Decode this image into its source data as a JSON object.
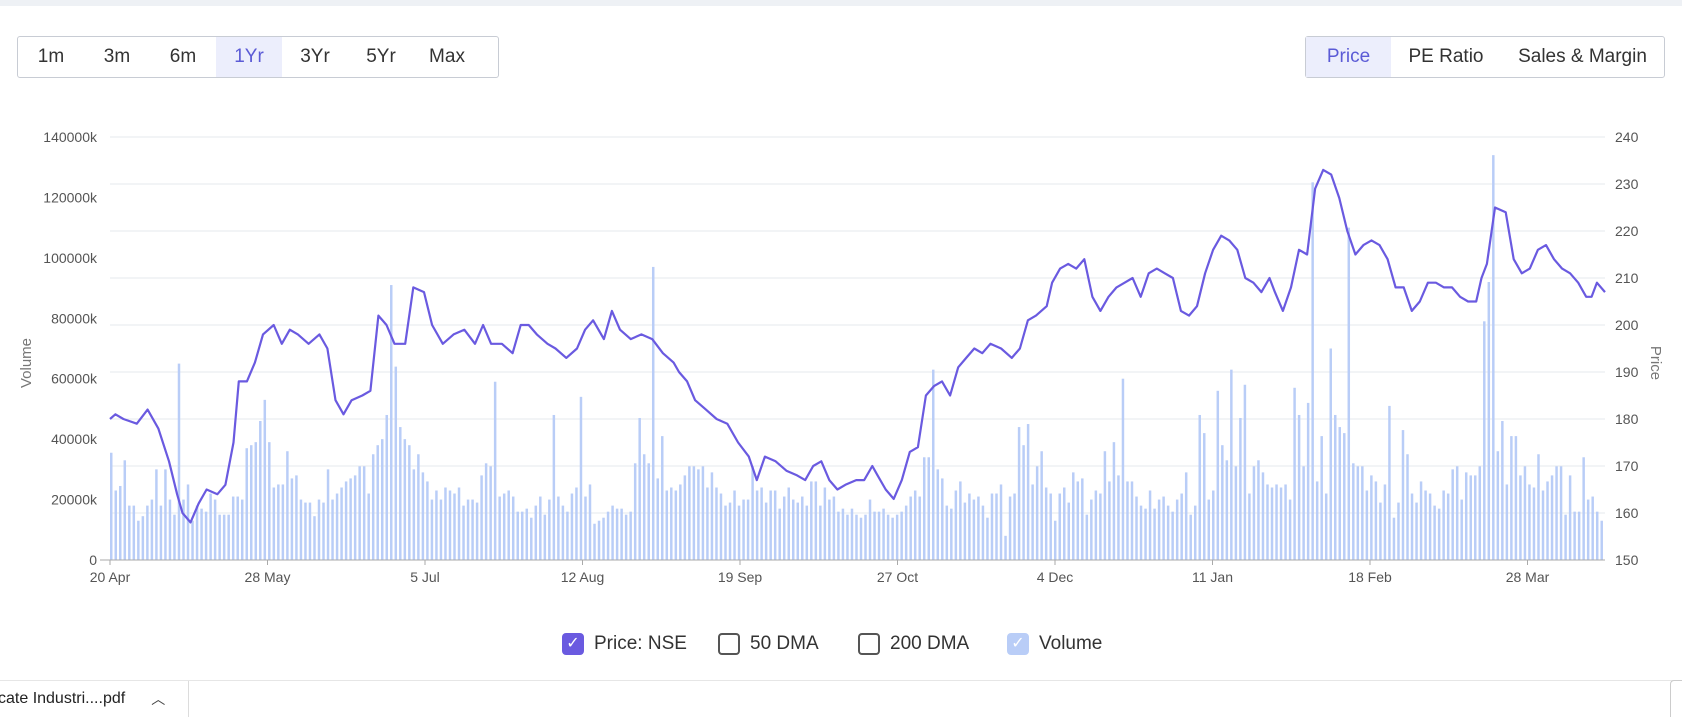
{
  "range_buttons": [
    "1m",
    "3m",
    "6m",
    "1Yr",
    "3Yr",
    "5Yr",
    "Max"
  ],
  "active_range": "1Yr",
  "view_buttons": [
    "Price",
    "PE Ratio",
    "Sales & Margin"
  ],
  "active_view": "Price",
  "legend": {
    "price_label": "Price: NSE",
    "dma50_label": "50 DMA",
    "dma200_label": "200 DMA",
    "volume_label": "Volume"
  },
  "download": {
    "file_label": "cate Industri....pdf"
  },
  "chart_data": {
    "type": "line",
    "colors": {
      "price": "#6a5ae0",
      "volume": "#b9cdf7",
      "grid": "#e6e8ec"
    },
    "x_ticks": [
      "20 Apr",
      "28 May",
      "5 Jul",
      "12 Aug",
      "19 Sep",
      "27 Oct",
      "4 Dec",
      "11 Jan",
      "18 Feb",
      "28 Mar"
    ],
    "y_left": {
      "label": "Volume",
      "range": [
        0,
        140000
      ],
      "ticks": [
        "0",
        "20000k",
        "40000k",
        "60000k",
        "80000k",
        "100000k",
        "120000k",
        "140000k"
      ]
    },
    "y_right": {
      "label": "Price",
      "range": [
        150,
        240
      ],
      "ticks": [
        "150",
        "160",
        "170",
        "180",
        "190",
        "200",
        "210",
        "220",
        "230",
        "240"
      ]
    },
    "price_series": {
      "name": "Price: NSE",
      "points": [
        [
          0,
          180
        ],
        [
          2,
          181
        ],
        [
          5,
          180
        ],
        [
          10,
          179
        ],
        [
          14,
          182
        ],
        [
          18,
          178
        ],
        [
          22,
          171
        ],
        [
          25,
          164
        ],
        [
          27,
          160
        ],
        [
          30,
          158
        ],
        [
          33,
          162
        ],
        [
          36,
          165
        ],
        [
          40,
          164
        ],
        [
          43,
          166
        ],
        [
          46,
          175
        ],
        [
          48,
          188
        ],
        [
          51,
          188
        ],
        [
          54,
          192
        ],
        [
          57,
          198
        ],
        [
          61,
          200
        ],
        [
          64,
          196
        ],
        [
          67,
          199
        ],
        [
          70,
          198
        ],
        [
          74,
          196
        ],
        [
          78,
          198
        ],
        [
          81,
          195
        ],
        [
          84,
          184
        ],
        [
          87,
          181
        ],
        [
          90,
          184
        ],
        [
          94,
          185
        ],
        [
          97,
          186
        ],
        [
          100,
          202
        ],
        [
          103,
          200
        ],
        [
          106,
          196
        ],
        [
          110,
          196
        ],
        [
          113,
          208
        ],
        [
          117,
          207
        ],
        [
          120,
          200
        ],
        [
          124,
          196
        ],
        [
          128,
          198
        ],
        [
          132,
          199
        ],
        [
          136,
          196
        ],
        [
          139,
          200
        ],
        [
          142,
          196
        ],
        [
          146,
          196
        ],
        [
          150,
          194
        ],
        [
          153,
          200
        ],
        [
          156,
          200
        ],
        [
          159,
          198
        ],
        [
          163,
          196
        ],
        [
          166,
          195
        ],
        [
          170,
          193
        ],
        [
          174,
          195
        ],
        [
          177,
          199
        ],
        [
          180,
          201
        ],
        [
          184,
          197
        ],
        [
          187,
          203
        ],
        [
          190,
          199
        ],
        [
          194,
          197
        ],
        [
          198,
          198
        ],
        [
          202,
          197
        ],
        [
          206,
          194
        ],
        [
          210,
          192
        ],
        [
          212,
          190
        ],
        [
          215,
          188
        ],
        [
          218,
          184
        ],
        [
          222,
          182
        ],
        [
          226,
          180
        ],
        [
          230,
          179
        ],
        [
          234,
          175
        ],
        [
          238,
          172
        ],
        [
          241,
          167
        ],
        [
          244,
          172
        ],
        [
          248,
          171
        ],
        [
          252,
          169
        ],
        [
          256,
          168
        ],
        [
          259,
          167
        ],
        [
          262,
          170
        ],
        [
          265,
          171
        ],
        [
          268,
          167
        ],
        [
          271,
          165
        ],
        [
          274,
          166
        ],
        [
          278,
          167
        ],
        [
          281,
          167
        ],
        [
          284,
          170
        ],
        [
          286,
          168
        ],
        [
          289,
          165
        ],
        [
          292,
          163
        ],
        [
          295,
          167
        ],
        [
          298,
          173
        ],
        [
          301,
          174
        ],
        [
          304,
          185
        ],
        [
          307,
          187
        ],
        [
          310,
          188
        ],
        [
          313,
          185
        ],
        [
          316,
          191
        ],
        [
          319,
          193
        ],
        [
          322,
          195
        ],
        [
          325,
          194
        ],
        [
          328,
          196
        ],
        [
          332,
          195
        ],
        [
          336,
          193
        ],
        [
          339,
          195
        ],
        [
          342,
          201
        ],
        [
          345,
          202
        ],
        [
          349,
          204
        ],
        [
          351,
          209
        ],
        [
          354,
          212
        ],
        [
          357,
          213
        ],
        [
          360,
          212
        ],
        [
          363,
          214
        ],
        [
          366,
          206
        ],
        [
          369,
          203
        ],
        [
          372,
          206
        ],
        [
          375,
          208
        ],
        [
          378,
          209
        ],
        [
          381,
          210
        ],
        [
          384,
          206
        ],
        [
          387,
          211
        ],
        [
          390,
          212
        ],
        [
          393,
          211
        ],
        [
          396,
          210
        ],
        [
          399,
          203
        ],
        [
          402,
          202
        ],
        [
          405,
          204
        ],
        [
          408,
          211
        ],
        [
          411,
          216
        ],
        [
          414,
          219
        ],
        [
          417,
          218
        ],
        [
          420,
          216
        ],
        [
          423,
          210
        ],
        [
          426,
          209
        ],
        [
          429,
          207
        ],
        [
          432,
          210
        ],
        [
          434,
          207
        ],
        [
          437,
          203
        ],
        [
          440,
          208
        ],
        [
          443,
          216
        ],
        [
          446,
          215
        ],
        [
          449,
          229
        ],
        [
          452,
          233
        ],
        [
          455,
          232
        ],
        [
          458,
          227
        ],
        [
          461,
          220
        ],
        [
          464,
          215
        ],
        [
          467,
          217
        ],
        [
          470,
          218
        ],
        [
          473,
          217
        ],
        [
          476,
          214
        ],
        [
          479,
          208
        ],
        [
          482,
          208
        ],
        [
          485,
          203
        ],
        [
          488,
          205
        ],
        [
          491,
          209
        ],
        [
          494,
          209
        ],
        [
          497,
          208
        ],
        [
          500,
          208
        ],
        [
          503,
          206
        ],
        [
          506,
          205
        ],
        [
          509,
          205
        ],
        [
          511,
          210
        ],
        [
          513,
          213
        ],
        [
          516,
          225
        ],
        [
          520,
          224
        ],
        [
          523,
          214
        ],
        [
          526,
          211
        ],
        [
          529,
          212
        ],
        [
          532,
          216
        ],
        [
          535,
          217
        ],
        [
          538,
          214
        ],
        [
          541,
          212
        ],
        [
          544,
          211
        ],
        [
          547,
          209
        ],
        [
          550,
          206
        ],
        [
          552,
          206
        ],
        [
          554,
          209
        ],
        [
          557,
          207
        ]
      ]
    },
    "volume_series": {
      "name": "Volume",
      "values_k": [
        35500,
        23000,
        24500,
        33000,
        18000,
        18000,
        13000,
        14500,
        18000,
        20000,
        30000,
        18000,
        30000,
        20000,
        15000,
        65000,
        20000,
        25000,
        13000,
        18000,
        17000,
        16000,
        22000,
        20000,
        15000,
        15000,
        15000,
        21000,
        21000,
        20000,
        37000,
        38000,
        39000,
        46000,
        53000,
        39000,
        24000,
        25000,
        25000,
        36000,
        27000,
        28000,
        20000,
        19000,
        19000,
        14500,
        20000,
        19000,
        30000,
        20000,
        22000,
        24000,
        26000,
        27000,
        28000,
        31000,
        31000,
        22000,
        35000,
        38000,
        40000,
        48000,
        91000,
        64000,
        44000,
        40000,
        38000,
        30000,
        35000,
        29000,
        26000,
        20000,
        23000,
        20000,
        24000,
        23000,
        22000,
        24000,
        18000,
        20000,
        20000,
        19000,
        28000,
        32000,
        31000,
        59000,
        21000,
        22000,
        23000,
        21000,
        16000,
        16000,
        17000,
        14000,
        18000,
        21000,
        15000,
        20000,
        48000,
        21000,
        18000,
        16000,
        22000,
        24000,
        54000,
        21000,
        25000,
        12000,
        13000,
        14000,
        16000,
        18000,
        17000,
        17000,
        15000,
        16000,
        32000,
        47000,
        35000,
        32000,
        97000,
        27000,
        41000,
        23000,
        24000,
        23000,
        25000,
        28000,
        31000,
        31000,
        30000,
        31000,
        24000,
        29000,
        24000,
        22000,
        18000,
        19000,
        23000,
        18000,
        20000,
        20000,
        31000,
        23000,
        24000,
        19000,
        23000,
        23000,
        17000,
        21000,
        24000,
        20000,
        19000,
        21000,
        18000,
        26000,
        26000,
        18000,
        24000,
        20000,
        21000,
        16000,
        17000,
        15000,
        17000,
        15000,
        14000,
        15000,
        20000,
        16000,
        16000,
        17000,
        15000,
        14000,
        15000,
        16000,
        18000,
        21000,
        23000,
        21000,
        34000,
        34000,
        63000,
        30000,
        27000,
        18000,
        17000,
        23000,
        26000,
        19000,
        22000,
        20000,
        21000,
        18000,
        14000,
        22000,
        22000,
        25000,
        8000,
        21000,
        22000,
        44000,
        38000,
        45000,
        25000,
        31000,
        36000,
        24000,
        22000,
        13000,
        22000,
        24000,
        19000,
        29000,
        26000,
        27000,
        15000,
        20000,
        23000,
        22000,
        36000,
        26000,
        39000,
        28000,
        60000,
        26000,
        26000,
        21000,
        18000,
        17000,
        23000,
        17000,
        20000,
        21000,
        18000,
        16000,
        20000,
        22000,
        29000,
        15000,
        18000,
        48000,
        42000,
        20000,
        23000,
        56000,
        38000,
        33000,
        63000,
        31000,
        47000,
        58000,
        22000,
        31000,
        33000,
        29000,
        25000,
        24000,
        25000,
        24000,
        25000,
        20000,
        57000,
        48000,
        31000,
        52000,
        125000,
        26000,
        41000,
        22000,
        70000,
        48000,
        44000,
        42000,
        110000,
        32000,
        31000,
        31000,
        23000,
        28000,
        26000,
        19000,
        25000,
        51000,
        14000,
        19000,
        43000,
        35000,
        22000,
        19000,
        26000,
        23000,
        22000,
        18000,
        17000,
        23000,
        22000,
        30000,
        31000,
        20000,
        29000,
        28000,
        28000,
        31000,
        79000,
        92000,
        134000,
        36000,
        46000,
        25000,
        41000,
        41000,
        28000,
        31000,
        25000,
        24000,
        35000,
        23000,
        26000,
        28000,
        31000,
        31000,
        15000,
        28000,
        16000,
        16000,
        34000,
        20000,
        21000,
        16000,
        13000
      ]
    }
  }
}
